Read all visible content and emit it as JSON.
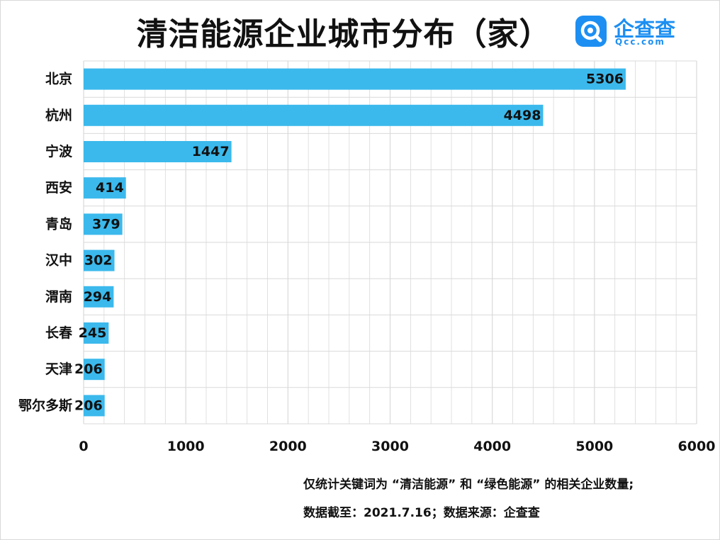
{
  "title": "清洁能源企业城市分布（家）",
  "brand": {
    "name": "企查查",
    "domain": "Qcc.com",
    "logo_icon": "qcc-magnifier-logo-icon",
    "color": "#1d8ff2"
  },
  "notes": [
    "仅统计关键词为 “清洁能源” 和 “绿色能源” 的相关企业数量;",
    "数据截至：2021.7.16；数据来源：企查查"
  ],
  "chart_data": {
    "type": "bar",
    "orientation": "horizontal",
    "title": "清洁能源企业城市分布（家）",
    "xlabel": "",
    "ylabel": "",
    "categories": [
      "北京",
      "杭州",
      "宁波",
      "西安",
      "青岛",
      "汉中",
      "渭南",
      "长春",
      "天津",
      "鄂尔多斯"
    ],
    "values": [
      5306,
      4498,
      1447,
      414,
      379,
      302,
      294,
      245,
      206,
      206
    ],
    "xlim": [
      0,
      6000
    ],
    "xticks": [
      0,
      1000,
      2000,
      3000,
      4000,
      5000,
      6000
    ],
    "grid": true,
    "data_labels": true,
    "bar_color": "#3bb9ec",
    "grid_color": "#d9d9d9"
  }
}
